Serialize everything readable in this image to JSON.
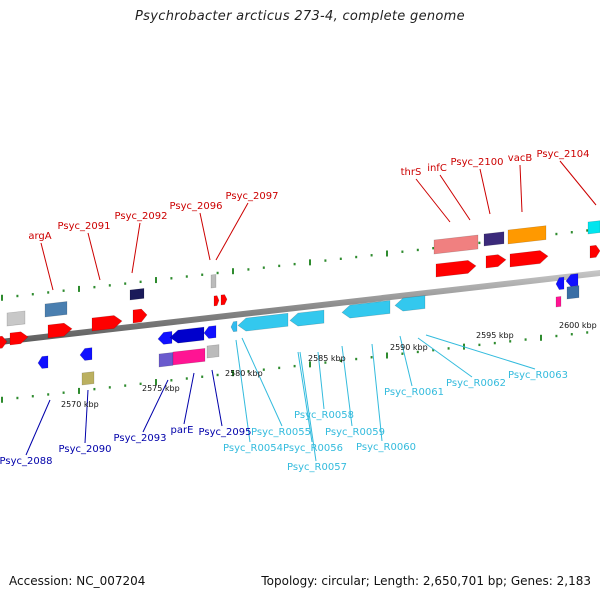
{
  "title": "Psychrobacter arcticus 273-4, complete genome",
  "footer": {
    "accession": "Accession: NC_007204",
    "topology": "Topology: circular; Length: 2,650,701 bp; Genes: 2,183"
  },
  "colors": {
    "forward_label": "#cc0000",
    "reverse_label": "#0000aa",
    "rna_label": "#33bbdd",
    "backbone": "#8a8a8a",
    "tick": "#2e8b2e"
  },
  "scale_labels": [
    "2570 kbp",
    "2575 kbp",
    "2580 kbp",
    "2585 kbp",
    "2590 kbp",
    "2595 kbp",
    "2600 kbp"
  ],
  "forward_labels": [
    "argA",
    "Psyc_2091",
    "Psyc_2092",
    "Psyc_2096",
    "Psyc_2097",
    "thrS",
    "infC",
    "Psyc_2100",
    "vacB",
    "Psyc_2104"
  ],
  "reverse_labels": [
    "Psyc_2088",
    "Psyc_2090",
    "Psyc_2093",
    "parE",
    "Psyc_2095"
  ],
  "rna_labels": [
    "Psyc_R0054",
    "Psyc_R0055",
    "Psyc_R0056",
    "Psyc_R0057",
    "Psyc_R0058",
    "Psyc_R0059",
    "Psyc_R0060",
    "Psyc_R0061",
    "Psyc_R0062",
    "Psyc_R0063"
  ]
}
